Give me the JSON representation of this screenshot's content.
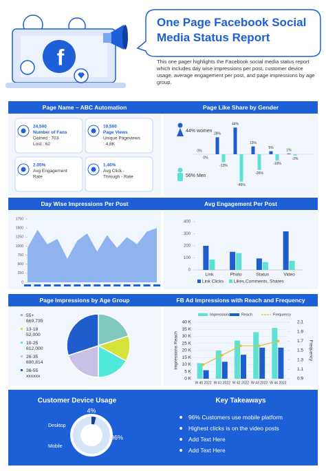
{
  "header": {
    "title": "One Page Facebook Social Media Status Report",
    "description": "This one pager highlights the Facebook social media status report which includes day wise impressions per post, customer device usage, average engagement per post, and page impressions by age group."
  },
  "summary": {
    "title": "Page Name – ABC Automation",
    "cards": [
      [
        "24,500",
        "Number of Fans",
        "Gained : 703",
        "Lost : 62"
      ],
      [
        "10,500",
        "Page Views",
        "Unique Pageviews",
        ": 4,8K"
      ],
      [
        "2.05%",
        "Avg Engagement",
        "Rate"
      ],
      [
        "1.46%",
        "Avg Click -",
        "Through - Rate"
      ]
    ]
  },
  "takeaways": {
    "title": "Key Takeaways",
    "items": [
      "96% Customers use mobile platform",
      "Highest clicks is on the video posts",
      "Add Text Here",
      "Add Text Here"
    ]
  },
  "chart_data": [
    {
      "type": "diverging-bar",
      "title": "Page Like Share by Gender",
      "categories": [
        null,
        null,
        null,
        null,
        null,
        null
      ],
      "series": [
        {
          "name": "44% women",
          "color": "#1f5ccc",
          "values": [
            0,
            28,
            44,
            13,
            5,
            1
          ],
          "value_labels": [
            "0%",
            "28%",
            "44%",
            "13%",
            "5%",
            "1%"
          ]
        },
        {
          "name": "56% Men",
          "color": "#5fe0d4",
          "values": [
            0,
            -13,
            -45,
            -26,
            -10,
            -2
          ],
          "value_labels": [
            "0%",
            "-13%",
            "-45%",
            "-26%",
            "-10%",
            "-2%"
          ]
        }
      ],
      "ylim": [
        -50,
        50
      ]
    },
    {
      "type": "area",
      "title": "Day Wise Impressions Per Post",
      "categories": [
        null,
        null,
        null,
        null,
        null,
        null,
        null,
        null,
        null,
        null,
        null,
        null,
        null,
        null
      ],
      "values": [
        950,
        1450,
        1050,
        1200,
        650,
        1150,
        1350,
        850,
        1300,
        950,
        1250,
        1050,
        1400,
        1500
      ],
      "color": "#8fb3ee",
      "ylim": [
        0,
        1750
      ],
      "yticks": [
        0,
        250,
        500,
        750,
        1000,
        1250,
        1500,
        1750
      ]
    },
    {
      "type": "grouped-bar",
      "title": "Avg Engagement Per Post",
      "categories": [
        "Link",
        "Photo",
        "Status",
        "Video"
      ],
      "series": [
        {
          "name": "Link Clicks",
          "color": "#1f5ccc",
          "values": [
            200,
            150,
            95,
            320
          ]
        },
        {
          "name": "Likes,Comments, Shares",
          "color": "#5fe0d4",
          "values": [
            85,
            140,
            65,
            75
          ]
        }
      ],
      "ylim": [
        0,
        400
      ],
      "yticks": [
        0,
        100,
        200,
        300,
        400
      ]
    },
    {
      "type": "pie",
      "title": "Page Impressions by Age Group",
      "categories": [
        "55+",
        "13-18",
        "19-25",
        "26-35",
        "36-55"
      ],
      "category_notes": [
        "669,735",
        "52,000",
        "612,000",
        "690,814",
        "xxxxxx"
      ],
      "values": [
        20,
        13,
        17,
        20,
        30
      ],
      "colors": [
        "#7fc9bf",
        "#d4e23a",
        "#4ee8dc",
        "#c9c0e6",
        "#1f5ccc"
      ]
    },
    {
      "type": "bar-line",
      "title": "FB Ad Impressions with Reach and Frequency",
      "categories": [
        "W 40 2022",
        "W 41 2022",
        "W 42 2022",
        "W 43 2022",
        "W 44 2022"
      ],
      "series": [
        {
          "name": "Impressions",
          "type": "bar",
          "color": "#5fe0d4",
          "values": [
            11000,
            20000,
            27000,
            33000,
            36000
          ]
        },
        {
          "name": "Reach",
          "type": "bar",
          "color": "#1f5ccc",
          "values": [
            6000,
            12000,
            17000,
            22000,
            22000
          ]
        },
        {
          "name": "Frequency",
          "type": "line",
          "axis": "y2",
          "color": "#e0c22e",
          "values": [
            1.2,
            1.4,
            1.6,
            1.6,
            1.7
          ]
        }
      ],
      "y_label": "Impressions Reach",
      "y2_label": "Frequency",
      "ylim": [
        0,
        40000
      ],
      "yticks": [
        {
          "value": 0,
          "label": "0 K"
        },
        {
          "value": 5000,
          "label": "5 K"
        },
        {
          "value": 10000,
          "label": "10 K"
        },
        {
          "value": 15000,
          "label": "15 K"
        },
        {
          "value": 20000,
          "label": "20 K"
        },
        {
          "value": 25000,
          "label": "25 K"
        },
        {
          "value": 30000,
          "label": "30 K"
        },
        {
          "value": 35000,
          "label": "35 K"
        },
        {
          "value": 40000,
          "label": "40 K"
        }
      ],
      "y2lim": [
        0.9,
        2.1
      ],
      "y2ticks": [
        0.9,
        1.1,
        1.3,
        1.5,
        1.7,
        1.9,
        2.1
      ],
      "grid": true
    },
    {
      "type": "donut",
      "title": "Customer Device Usage",
      "categories": [
        "Desktop",
        "Mobile"
      ],
      "values": [
        4,
        96
      ],
      "value_labels": [
        "4%",
        "96%"
      ],
      "colors": [
        "#0f3f9e",
        "#d6e4f8"
      ]
    }
  ]
}
